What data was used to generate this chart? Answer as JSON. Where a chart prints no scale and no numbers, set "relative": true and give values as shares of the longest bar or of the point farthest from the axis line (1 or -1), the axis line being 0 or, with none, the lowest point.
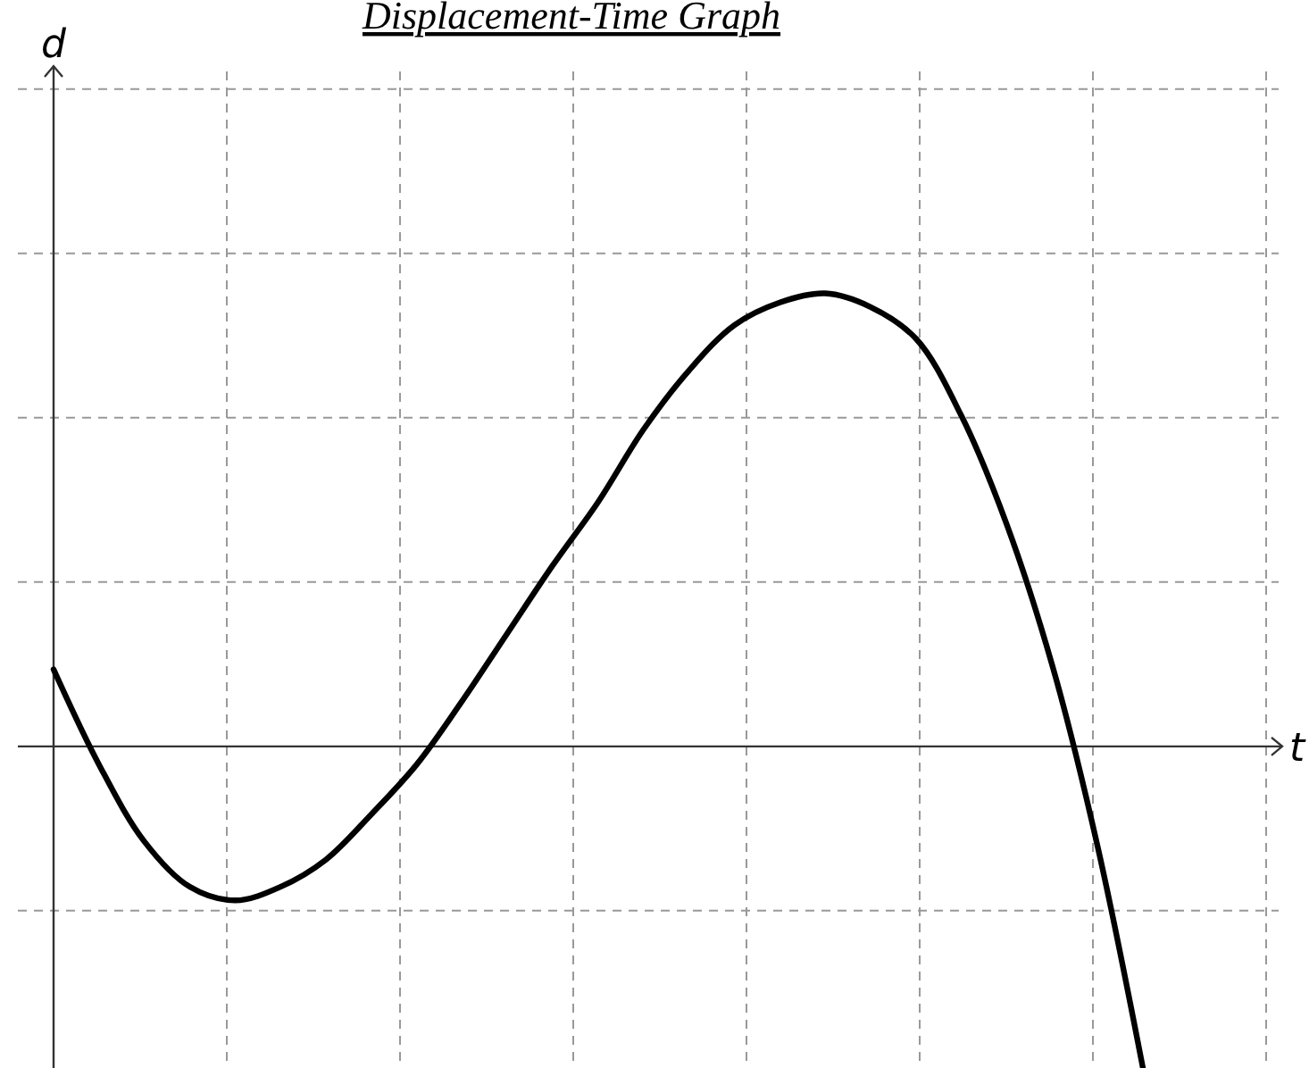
{
  "chart_data": {
    "type": "line",
    "title": "Displacement-Time Graph",
    "xlabel": "t",
    "annotations": [
      "d"
    ],
    "relative": true,
    "grid": true,
    "marker": "none",
    "line_style": "solid",
    "categories": [
      null,
      null,
      null,
      null,
      null,
      null,
      null,
      null,
      null,
      null,
      null,
      null,
      null,
      null,
      null,
      null,
      null,
      null,
      null,
      null,
      null,
      null,
      null,
      null,
      null
    ],
    "series": [
      {
        "color": "#000000",
        "values": [
          0.17,
          -0.04,
          -0.21,
          -0.31,
          -0.34,
          -0.31,
          -0.25,
          -0.15,
          -0.04,
          0.1,
          0.25,
          0.4,
          0.54,
          0.7,
          0.83,
          0.93,
          0.98,
          1,
          0.97,
          0.9,
          0.73,
          0.49,
          0.18,
          -0.22,
          -0.71
        ]
      }
    ]
  }
}
